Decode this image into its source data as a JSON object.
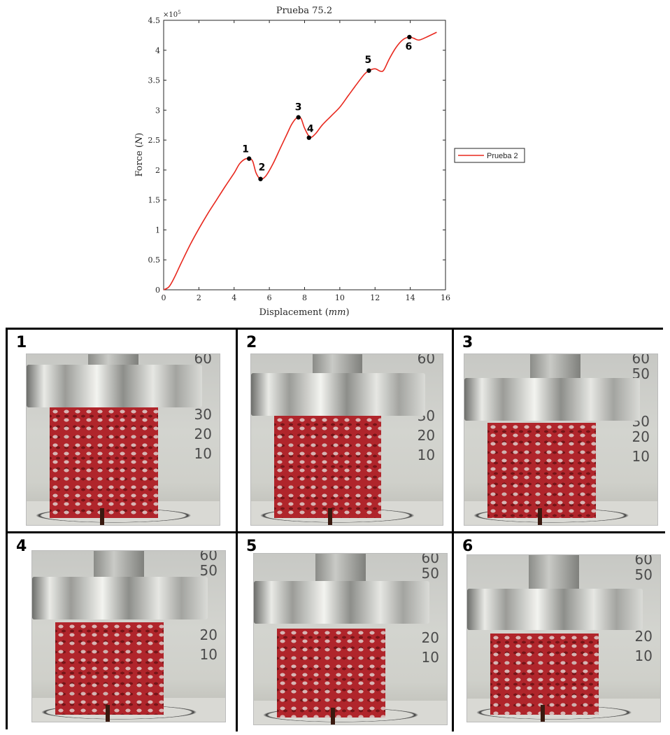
{
  "chart_data": {
    "type": "line",
    "title": "Prueba 75.2",
    "xlabel": "Displacement",
    "xlabel_unit": "mm",
    "ylabel": "Force",
    "ylabel_unit": "N",
    "y_multiplier": "×10",
    "y_multiplier_exp": "5",
    "xlim": [
      0,
      16
    ],
    "ylim": [
      0,
      4.5
    ],
    "xticks": [
      "0",
      "2",
      "4",
      "6",
      "8",
      "10",
      "12",
      "14",
      "16"
    ],
    "yticks": [
      "0",
      "0.5",
      "1",
      "1.5",
      "2",
      "2.5",
      "3",
      "3.5",
      "4",
      "4.5"
    ],
    "grid": false,
    "legend_position": "right",
    "series": [
      {
        "name": "Prueba 2",
        "color": "#e8281e",
        "x": [
          0,
          0.3,
          0.6,
          1.0,
          1.5,
          2.0,
          2.5,
          3.0,
          3.5,
          4.0,
          4.3,
          4.6,
          4.85,
          5.05,
          5.25,
          5.5,
          5.8,
          6.2,
          6.6,
          7.0,
          7.3,
          7.6,
          7.8,
          8.0,
          8.3,
          8.6,
          9.0,
          9.5,
          10.0,
          10.5,
          11.0,
          11.4,
          11.65,
          12.0,
          12.3,
          12.5,
          12.8,
          13.2,
          13.6,
          13.95,
          14.2,
          14.5,
          15.0,
          15.5
        ],
        "y": [
          0,
          0.05,
          0.2,
          0.45,
          0.75,
          1.02,
          1.27,
          1.5,
          1.73,
          1.95,
          2.1,
          2.18,
          2.19,
          2.15,
          1.95,
          1.85,
          1.9,
          2.1,
          2.35,
          2.6,
          2.78,
          2.88,
          2.86,
          2.7,
          2.55,
          2.6,
          2.75,
          2.9,
          3.05,
          3.25,
          3.45,
          3.6,
          3.66,
          3.69,
          3.65,
          3.67,
          3.85,
          4.05,
          4.18,
          4.22,
          4.2,
          4.17,
          4.23,
          4.3
        ]
      }
    ],
    "marked_points": [
      {
        "label": "1",
        "x": 4.85,
        "y": 2.19
      },
      {
        "label": "2",
        "x": 5.5,
        "y": 1.85
      },
      {
        "label": "3",
        "x": 7.65,
        "y": 2.88
      },
      {
        "label": "4",
        "x": 8.25,
        "y": 2.54
      },
      {
        "label": "5",
        "x": 11.65,
        "y": 3.66
      },
      {
        "label": "6",
        "x": 13.95,
        "y": 4.22
      }
    ]
  },
  "panels": [
    {
      "label": "1",
      "ruler": [
        "60",
        "30",
        "20",
        "10"
      ]
    },
    {
      "label": "2",
      "ruler": [
        "60",
        "30",
        "20",
        "10"
      ]
    },
    {
      "label": "3",
      "ruler": [
        "60",
        "50",
        "30",
        "20",
        "10"
      ]
    },
    {
      "label": "4",
      "ruler": [
        "60",
        "50",
        "20",
        "10"
      ]
    },
    {
      "label": "5",
      "ruler": [
        "60",
        "50",
        "20",
        "10"
      ]
    },
    {
      "label": "6",
      "ruler": [
        "60",
        "50",
        "20",
        "10"
      ]
    }
  ]
}
